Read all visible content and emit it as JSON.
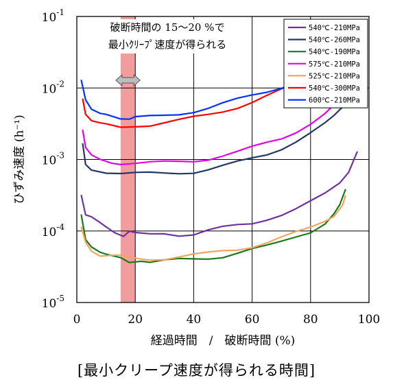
{
  "chart_data": {
    "type": "line",
    "xlabel": "経過時間　/　破断時間 (%)",
    "ylabel": "ひずみ速度 (h⁻¹)",
    "caption": "[最小クリープ速度が得られる時間]",
    "annotation_line1": "破断時間の 15～20 %で",
    "annotation_line2": "最小ｸﾘｰﾌﾟ速度が得られる",
    "yscale": "log",
    "xlim": [
      0,
      100
    ],
    "ylim": [
      1e-05,
      0.1
    ],
    "x_ticks": [
      "0",
      "20",
      "40",
      "60",
      "80",
      "100"
    ],
    "y_ticks": [
      {
        "base": "10",
        "exp": "-5",
        "value": 1e-05
      },
      {
        "base": "10",
        "exp": "-4",
        "value": 0.0001
      },
      {
        "base": "10",
        "exp": "-3",
        "value": 0.001
      },
      {
        "base": "10",
        "exp": "-2",
        "value": 0.01
      },
      {
        "base": "10",
        "exp": "-1",
        "value": 0.1
      }
    ],
    "grid": true,
    "legend_position": "top-right",
    "highlight_band": {
      "x_start": 15,
      "x_end": 20,
      "color": "#f08c8c"
    },
    "series": [
      {
        "name": "540℃-210MPa",
        "color": "#7030a0",
        "points": [
          [
            1.5,
            0.00032
          ],
          [
            3,
            0.00016
          ],
          [
            5,
            0.00015
          ],
          [
            8,
            0.00013
          ],
          [
            10,
            0.00012
          ],
          [
            13,
            0.0001
          ],
          [
            16,
            8.5e-05
          ],
          [
            18,
            9.5e-05
          ],
          [
            20,
            9e-05
          ],
          [
            25,
            9e-05
          ],
          [
            30,
            9.5e-05
          ],
          [
            35,
            9e-05
          ],
          [
            40,
            9e-05
          ],
          [
            45,
            0.0001
          ],
          [
            50,
            0.00011
          ],
          [
            55,
            0.00012
          ],
          [
            60,
            0.00013
          ],
          [
            65,
            0.00015
          ],
          [
            70,
            0.00017
          ],
          [
            75,
            0.0002
          ],
          [
            80,
            0.00025
          ],
          [
            85,
            0.00033
          ],
          [
            90,
            0.00048
          ],
          [
            93,
            0.0007
          ],
          [
            96,
            0.00135
          ]
        ]
      },
      {
        "name": "540℃-260MPa",
        "color": "#1f3864",
        "points": [
          [
            2,
            0.0016
          ],
          [
            3,
            0.00085
          ],
          [
            5,
            0.00075
          ],
          [
            10,
            0.00068
          ],
          [
            15,
            0.00064
          ],
          [
            20,
            0.00063
          ],
          [
            25,
            0.00063
          ],
          [
            30,
            0.00064
          ],
          [
            35,
            0.00066
          ],
          [
            40,
            0.00068
          ],
          [
            45,
            0.00073
          ],
          [
            50,
            0.0008
          ],
          [
            55,
            0.0009
          ],
          [
            60,
            0.00103
          ],
          [
            65,
            0.0012
          ],
          [
            70,
            0.00145
          ],
          [
            75,
            0.0018
          ],
          [
            80,
            0.0023
          ],
          [
            85,
            0.0031
          ],
          [
            88,
            0.004
          ],
          [
            91,
            0.0056
          ],
          [
            93,
            0.0072
          ]
        ]
      },
      {
        "name": "540℃-190MPa",
        "color": "#1a7a1a",
        "points": [
          [
            1.5,
            0.00018
          ],
          [
            3,
            8e-05
          ],
          [
            5,
            6e-05
          ],
          [
            8,
            4.8e-05
          ],
          [
            10,
            4.5e-05
          ],
          [
            15,
            4.2e-05
          ],
          [
            18,
            3.8e-05
          ],
          [
            22,
            4e-05
          ],
          [
            25,
            3.7e-05
          ],
          [
            30,
            3.8e-05
          ],
          [
            35,
            3.9e-05
          ],
          [
            40,
            4e-05
          ],
          [
            45,
            4.2e-05
          ],
          [
            50,
            4.5e-05
          ],
          [
            55,
            5e-05
          ],
          [
            60,
            5.5e-05
          ],
          [
            65,
            6e-05
          ],
          [
            70,
            7e-05
          ],
          [
            75,
            8.5e-05
          ],
          [
            80,
            0.0001
          ],
          [
            85,
            0.00013
          ],
          [
            88,
            0.00017
          ],
          [
            90,
            0.00022
          ],
          [
            92,
            0.00037
          ]
        ]
      },
      {
        "name": "575℃-210MPa",
        "color": "#e600e6",
        "points": [
          [
            2,
            0.0026
          ],
          [
            3,
            0.0014
          ],
          [
            5,
            0.0011
          ],
          [
            8,
            0.001
          ],
          [
            12,
            0.00093
          ],
          [
            15,
            0.0009
          ],
          [
            20,
            0.00089
          ],
          [
            25,
            0.00089
          ],
          [
            30,
            0.0009
          ],
          [
            35,
            0.00093
          ],
          [
            40,
            0.00097
          ],
          [
            45,
            0.00104
          ],
          [
            50,
            0.00114
          ],
          [
            55,
            0.00126
          ],
          [
            60,
            0.00145
          ],
          [
            65,
            0.0017
          ],
          [
            70,
            0.002
          ],
          [
            75,
            0.0025
          ],
          [
            80,
            0.0032
          ],
          [
            85,
            0.0043
          ],
          [
            88,
            0.0055
          ],
          [
            90,
            0.007
          ]
        ]
      },
      {
        "name": "525℃-210MPa",
        "color": "#f4a460",
        "points": [
          [
            1.5,
            0.00011
          ],
          [
            3,
            7e-05
          ],
          [
            5,
            5.5e-05
          ],
          [
            8,
            4.7e-05
          ],
          [
            12,
            4.6e-05
          ],
          [
            15,
            4.4e-05
          ],
          [
            18,
            4.1e-05
          ],
          [
            22,
            4e-05
          ],
          [
            25,
            4.1e-05
          ],
          [
            30,
            4.2e-05
          ],
          [
            35,
            4.4e-05
          ],
          [
            40,
            4.6e-05
          ],
          [
            45,
            4.8e-05
          ],
          [
            50,
            5.2e-05
          ],
          [
            55,
            5.6e-05
          ],
          [
            60,
            6.2e-05
          ],
          [
            65,
            7e-05
          ],
          [
            70,
            8e-05
          ],
          [
            75,
            9.3e-05
          ],
          [
            80,
            0.00011
          ],
          [
            85,
            0.00014
          ],
          [
            88,
            0.00017
          ],
          [
            91,
            0.00024
          ],
          [
            92,
            0.00031
          ]
        ]
      },
      {
        "name": "540℃-300MPa",
        "color": "#ff0000",
        "points": [
          [
            2,
            0.0075
          ],
          [
            3,
            0.0045
          ],
          [
            5,
            0.0035
          ],
          [
            8,
            0.0031
          ],
          [
            10,
            0.003
          ],
          [
            15,
            0.0028
          ],
          [
            20,
            0.003
          ],
          [
            25,
            0.0031
          ],
          [
            30,
            0.0033
          ],
          [
            35,
            0.0035
          ],
          [
            40,
            0.0038
          ],
          [
            45,
            0.0042
          ],
          [
            50,
            0.0048
          ],
          [
            55,
            0.0055
          ],
          [
            60,
            0.0064
          ],
          [
            65,
            0.0076
          ],
          [
            70,
            0.0092
          ],
          [
            74,
            0.0105
          ]
        ]
      },
      {
        "name": "600℃-210MPa",
        "color": "#0033ff",
        "points": [
          [
            1.5,
            0.013
          ],
          [
            3,
            0.0065
          ],
          [
            5,
            0.0048
          ],
          [
            8,
            0.0044
          ],
          [
            10,
            0.0045
          ],
          [
            15,
            0.0039
          ],
          [
            18,
            0.0037
          ],
          [
            20,
            0.0038
          ],
          [
            25,
            0.0039
          ],
          [
            30,
            0.0041
          ],
          [
            35,
            0.0044
          ],
          [
            40,
            0.0048
          ],
          [
            45,
            0.0053
          ],
          [
            50,
            0.006
          ],
          [
            55,
            0.0068
          ],
          [
            60,
            0.0078
          ],
          [
            65,
            0.009
          ],
          [
            70,
            0.0105
          ],
          [
            75,
            0.012
          ],
          [
            80,
            0.014
          ]
        ]
      }
    ]
  }
}
